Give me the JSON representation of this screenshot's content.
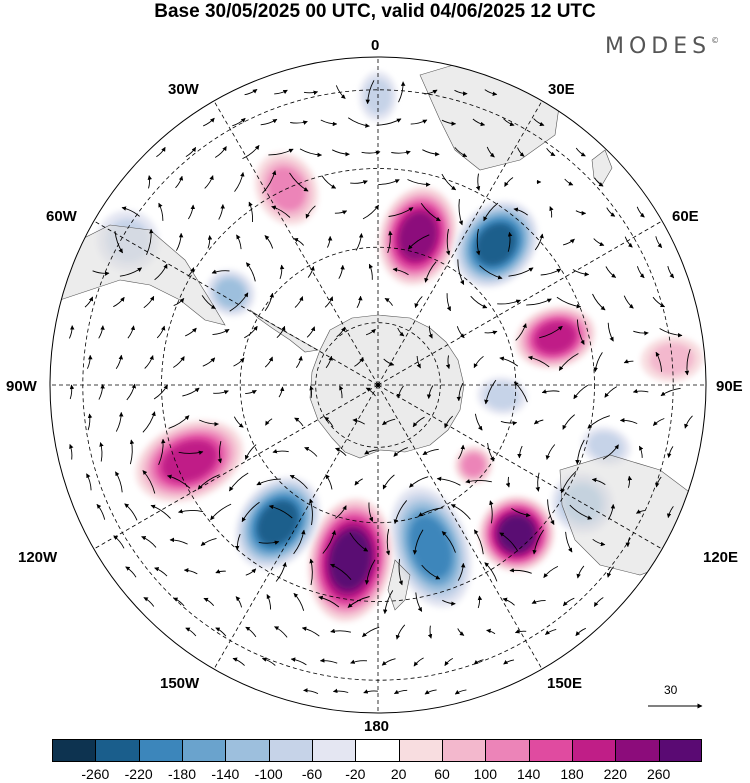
{
  "title": "Base 30/05/2025 00 UTC, valid 04/06/2025 12 UTC",
  "brand": {
    "name": "MODES",
    "mark": "©"
  },
  "lon_labels": {
    "n0": "0",
    "w30": "30W",
    "e30": "30E",
    "w60": "60W",
    "e60": "60E",
    "w90": "90W",
    "e90": "90E",
    "w120": "120W",
    "e120": "120E",
    "w150": "150W",
    "e150": "150E",
    "s180": "180"
  },
  "reference_vector": {
    "label": "30"
  },
  "colorbar": {
    "colors": [
      "#0d3350",
      "#1a5e8c",
      "#3c86bb",
      "#6aa3cd",
      "#9dbfdd",
      "#c6d3e8",
      "#e4e6f2",
      "#ffffff",
      "#f8dde0",
      "#f3b8cd",
      "#ec84b8",
      "#e04ba0",
      "#c01e87",
      "#8c0c7b",
      "#5a0a73"
    ],
    "ticks": [
      "-260",
      "-220",
      "-180",
      "-140",
      "-100",
      "-60",
      "-20",
      "20",
      "60",
      "100",
      "140",
      "180",
      "220",
      "260"
    ]
  },
  "anomalies": [
    {
      "lon": 15,
      "r": 0.47,
      "a": 0.16,
      "b": 0.1,
      "value": 230,
      "tilt": 0
    },
    {
      "lon": 40,
      "r": 0.56,
      "a": 0.15,
      "b": 0.1,
      "value": -220,
      "tilt": 0
    },
    {
      "lon": 75,
      "r": 0.56,
      "a": 0.13,
      "b": 0.08,
      "value": 200,
      "tilt": 0
    },
    {
      "lon": 120,
      "r": 0.72,
      "a": 0.1,
      "b": 0.08,
      "value": -100,
      "tilt": 0
    },
    {
      "lon": 137,
      "r": 0.62,
      "a": 0.12,
      "b": 0.1,
      "value": 260,
      "tilt": 0
    },
    {
      "lon": 162,
      "r": 0.52,
      "a": 0.2,
      "b": 0.1,
      "value": -200,
      "tilt": 0
    },
    {
      "lon": 189,
      "r": 0.54,
      "a": 0.2,
      "b": 0.11,
      "value": 280,
      "tilt": 0
    },
    {
      "lon": 216,
      "r": 0.52,
      "a": 0.16,
      "b": 0.1,
      "value": -250,
      "tilt": 0
    },
    {
      "lon": 248,
      "r": 0.62,
      "a": 0.18,
      "b": 0.1,
      "value": 180,
      "tilt": 0
    },
    {
      "lon": 302,
      "r": 0.53,
      "a": 0.08,
      "b": 0.06,
      "value": -120,
      "tilt": 0
    },
    {
      "lon": 335,
      "r": 0.66,
      "a": 0.12,
      "b": 0.08,
      "value": 110,
      "tilt": 0
    },
    {
      "lon": 300,
      "r": 0.88,
      "a": 0.1,
      "b": 0.08,
      "value": -60,
      "tilt": 0
    },
    {
      "lon": 95,
      "r": 0.38,
      "a": 0.08,
      "b": 0.05,
      "value": -60,
      "tilt": 0
    },
    {
      "lon": 105,
      "r": 0.72,
      "a": 0.08,
      "b": 0.05,
      "value": -80,
      "tilt": 0
    },
    {
      "lon": 130,
      "r": 0.38,
      "a": 0.06,
      "b": 0.05,
      "value": 100,
      "tilt": 0
    },
    {
      "lon": 0,
      "r": 0.88,
      "a": 0.08,
      "b": 0.05,
      "value": -80,
      "tilt": 0
    },
    {
      "lon": 85,
      "r": 0.9,
      "a": 0.1,
      "b": 0.06,
      "value": 80,
      "tilt": 0
    }
  ]
}
